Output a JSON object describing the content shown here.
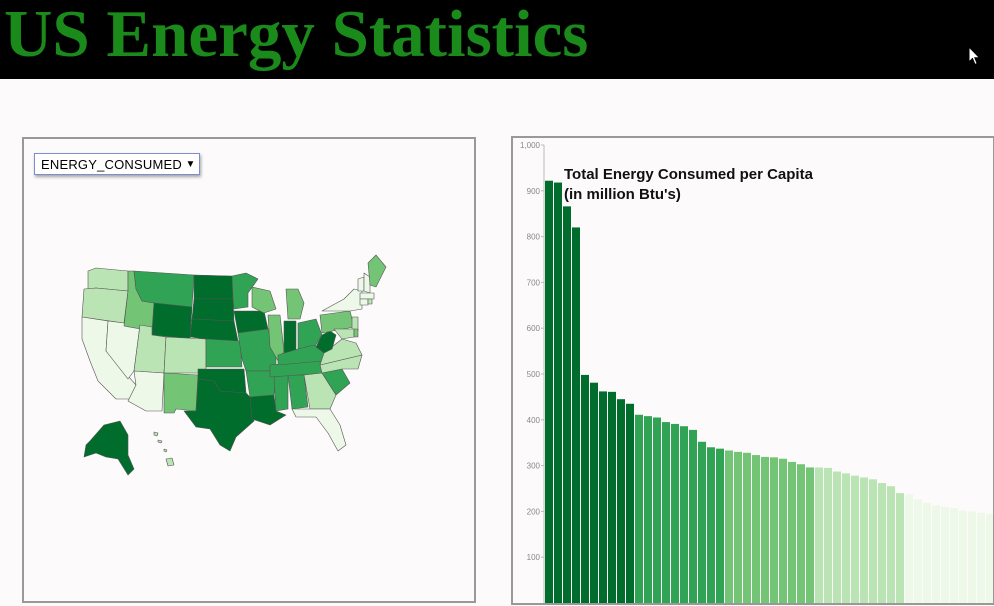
{
  "header": {
    "title": "US Energy Statistics"
  },
  "map": {
    "dropdown": {
      "selected": "ENERGY_CONSUMED"
    }
  },
  "colors": {
    "level_1": "#edf8e9",
    "level_2": "#bae4b3",
    "level_3": "#74c476",
    "level_4": "#31a354",
    "level_5": "#006d2c"
  },
  "chart_data": {
    "type": "bar",
    "title": "Total Energy Consumed per Capita",
    "subtitle": "(in million Btu's)",
    "ylim": [
      0,
      1000
    ],
    "y_ticks": [
      100,
      200,
      300,
      400,
      500,
      600,
      700,
      800,
      900,
      "1,000"
    ],
    "values": [
      922,
      918,
      866,
      820,
      498,
      481,
      462,
      461,
      445,
      435,
      411,
      408,
      405,
      395,
      391,
      386,
      378,
      352,
      340,
      337,
      333,
      330,
      328,
      323,
      319,
      318,
      315,
      308,
      303,
      296,
      296,
      295,
      287,
      283,
      278,
      274,
      270,
      262,
      255,
      240,
      237,
      226,
      219,
      213,
      210,
      207,
      202,
      200,
      197,
      195
    ]
  }
}
